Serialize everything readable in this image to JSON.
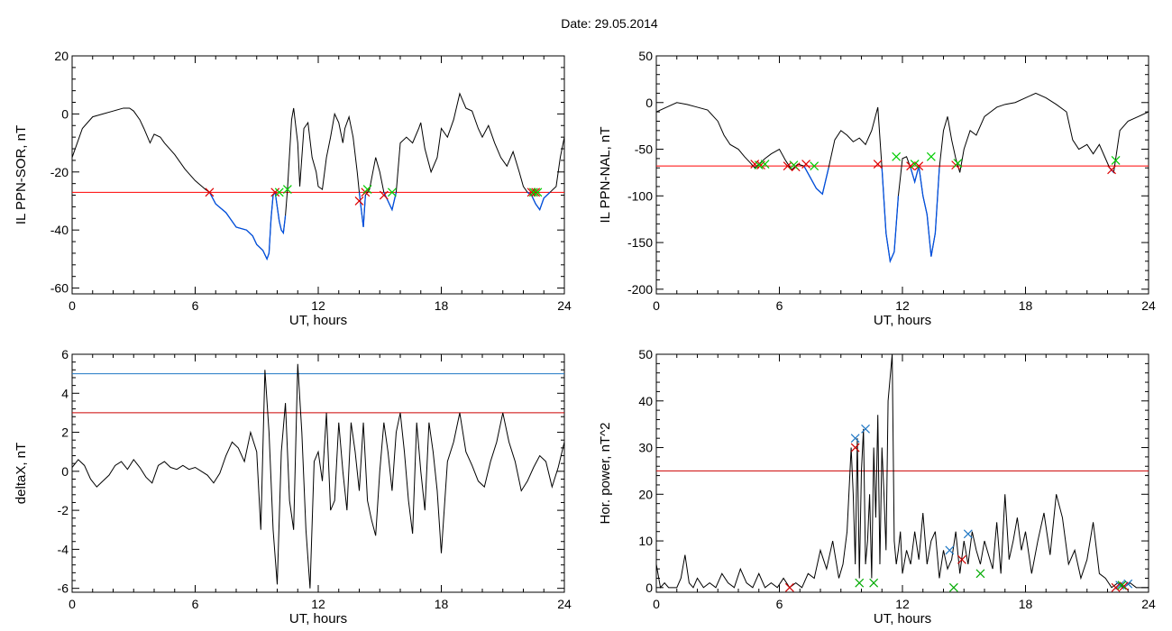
{
  "title": "Date:  29.05.2014",
  "chart_data": [
    {
      "type": "line",
      "id": "ppn-sor",
      "xlabel": "UT, hours",
      "ylabel": "IL PPN-SOR, nT",
      "xlim": [
        0,
        24
      ],
      "ylim": [
        -62,
        20
      ],
      "xticks": [
        0,
        6,
        12,
        18,
        24
      ],
      "yticks": [
        -60,
        -40,
        -20,
        0,
        20
      ],
      "threshold": {
        "value": -27,
        "color": "#ff0000"
      },
      "colors": {
        "main": "#000000",
        "below": "#0050e0",
        "start_marker": "#dd0000",
        "end_marker": "#00cc00"
      },
      "series": [
        {
          "x": [
            0,
            0.5,
            1,
            1.5,
            2,
            2.5,
            2.8,
            3,
            3.3,
            3.5,
            3.8,
            4,
            4.3,
            4.5,
            5,
            5.5,
            6,
            6.5,
            6.7,
            7,
            7.5,
            7.8,
            8,
            8.5,
            8.8,
            9,
            9.3,
            9.5,
            9.6,
            9.7,
            9.8,
            9.9,
            10,
            10.1,
            10.2,
            10.3,
            10.4,
            10.5,
            10.7,
            10.8,
            11,
            11.1,
            11.3,
            11.5,
            11.7,
            11.9,
            12,
            12.2,
            12.4,
            12.6,
            12.8,
            13,
            13.2,
            13.3,
            13.5,
            13.7,
            13.9,
            14,
            14.1,
            14.2,
            14.3,
            14.5,
            14.8,
            15,
            15.2,
            15.4,
            15.6,
            15.8,
            16,
            16.3,
            16.6,
            16.9,
            17,
            17.2,
            17.5,
            17.8,
            18,
            18.3,
            18.6,
            18.9,
            19.2,
            19.5,
            19.8,
            20,
            20.3,
            20.6,
            20.9,
            21.2,
            21.5,
            21.8,
            22,
            22.2,
            22.4,
            22.6,
            22.8,
            23,
            23.3,
            23.6,
            23.8,
            24
          ],
          "y": [
            -15,
            -5,
            -1,
            0,
            1,
            2,
            2,
            1,
            -2,
            -5,
            -10,
            -7,
            -8,
            -10,
            -14,
            -19,
            -23,
            -26,
            -27,
            -31,
            -34,
            -37,
            -39,
            -40,
            -42,
            -45,
            -47,
            -50,
            -48,
            -36,
            -28,
            -27,
            -32,
            -37,
            -40,
            -41,
            -35,
            -26,
            -2,
            2,
            -10,
            -25,
            -5,
            -3,
            -15,
            -20,
            -25,
            -26,
            -15,
            -8,
            0,
            -3,
            -10,
            -5,
            -1,
            -8,
            -20,
            -27,
            -33,
            -39,
            -28,
            -26,
            -15,
            -20,
            -27,
            -30,
            -33,
            -27,
            -10,
            -8,
            -10,
            -5,
            -3,
            -12,
            -20,
            -15,
            -5,
            -8,
            -2,
            7,
            2,
            1,
            -5,
            -8,
            -4,
            -10,
            -15,
            -18,
            -13,
            -20,
            -25,
            -27,
            -28,
            -31,
            -33,
            -29,
            -27,
            -25,
            -15,
            -8
          ]
        }
      ],
      "markers_start": [
        [
          6.7,
          -27
        ],
        [
          9.9,
          -27
        ],
        [
          14.0,
          -30
        ],
        [
          14.3,
          -27
        ],
        [
          15.2,
          -28
        ],
        [
          22.4,
          -27
        ],
        [
          22.6,
          -27
        ]
      ],
      "markers_end": [
        [
          10.1,
          -27
        ],
        [
          10.5,
          -26
        ],
        [
          14.4,
          -26
        ],
        [
          15.6,
          -27
        ],
        [
          22.5,
          -27
        ],
        [
          22.7,
          -27
        ]
      ]
    },
    {
      "type": "line",
      "id": "ppn-nal",
      "xlabel": "UT, hours",
      "ylabel": "IL PPN-NAL, nT",
      "xlim": [
        0,
        24
      ],
      "ylim": [
        -205,
        50
      ],
      "xticks": [
        0,
        6,
        12,
        18,
        24
      ],
      "yticks": [
        -200,
        -150,
        -100,
        -50,
        0,
        50
      ],
      "threshold": {
        "value": -68,
        "color": "#ff0000"
      },
      "colors": {
        "main": "#000000",
        "below": "#0050e0",
        "start_marker": "#dd0000",
        "end_marker": "#00cc00"
      },
      "series": [
        {
          "x": [
            0,
            0.5,
            1,
            1.5,
            2,
            2.5,
            3,
            3.3,
            3.6,
            4,
            4.3,
            4.6,
            4.8,
            5,
            5.3,
            5.6,
            6,
            6.3,
            6.6,
            6.9,
            7.2,
            7.5,
            7.8,
            8.1,
            8.4,
            8.7,
            9,
            9.3,
            9.6,
            9.9,
            10.2,
            10.5,
            10.8,
            11,
            11.2,
            11.4,
            11.6,
            11.8,
            12,
            12.2,
            12.4,
            12.6,
            12.8,
            13,
            13.2,
            13.4,
            13.6,
            13.8,
            14,
            14.2,
            14.4,
            14.6,
            14.8,
            15,
            15.3,
            15.6,
            16,
            16.3,
            16.6,
            17,
            17.5,
            18,
            18.5,
            19,
            19.5,
            20,
            20.3,
            20.6,
            21,
            21.3,
            21.6,
            21.9,
            22.1,
            22.3,
            22.6,
            23,
            23.5,
            24
          ],
          "y": [
            -10,
            -5,
            0,
            -2,
            -5,
            -8,
            -20,
            -35,
            -45,
            -50,
            -58,
            -65,
            -70,
            -66,
            -60,
            -55,
            -50,
            -62,
            -72,
            -66,
            -68,
            -80,
            -92,
            -98,
            -70,
            -40,
            -30,
            -35,
            -42,
            -38,
            -45,
            -30,
            -5,
            -70,
            -140,
            -170,
            -160,
            -100,
            -60,
            -58,
            -70,
            -85,
            -68,
            -100,
            -120,
            -165,
            -140,
            -70,
            -30,
            -15,
            -40,
            -60,
            -75,
            -50,
            -30,
            -35,
            -15,
            -10,
            -5,
            -2,
            0,
            5,
            10,
            5,
            -2,
            -10,
            -40,
            -50,
            -45,
            -55,
            -45,
            -60,
            -70,
            -75,
            -30,
            -20,
            -15,
            -10
          ]
        }
      ],
      "markers_start": [
        [
          4.8,
          -66
        ],
        [
          5.1,
          -67
        ],
        [
          6.4,
          -68
        ],
        [
          6.8,
          -69
        ],
        [
          7.3,
          -66
        ],
        [
          10.8,
          -66
        ],
        [
          12.4,
          -68
        ],
        [
          12.8,
          -68
        ],
        [
          14.6,
          -67
        ],
        [
          22.2,
          -72
        ]
      ],
      "markers_end": [
        [
          5.0,
          -67
        ],
        [
          5.3,
          -66
        ],
        [
          6.7,
          -67
        ],
        [
          7.7,
          -68
        ],
        [
          11.7,
          -58
        ],
        [
          12.6,
          -66
        ],
        [
          13.4,
          -58
        ],
        [
          14.7,
          -65
        ],
        [
          22.4,
          -62
        ]
      ]
    },
    {
      "type": "line",
      "id": "deltax",
      "xlabel": "UT, hours",
      "ylabel": "deltaX, nT",
      "xlim": [
        0,
        24
      ],
      "ylim": [
        -6.2,
        6
      ],
      "xticks": [
        0,
        6,
        12,
        18,
        24
      ],
      "yticks": [
        -6,
        -4,
        -2,
        0,
        2,
        4,
        6
      ],
      "hlines": [
        {
          "value": 5,
          "color": "#1f77c4"
        },
        {
          "value": 3,
          "color": "#cc0000"
        }
      ],
      "series": [
        {
          "x": [
            0,
            0.3,
            0.6,
            0.9,
            1.2,
            1.5,
            1.8,
            2.1,
            2.4,
            2.7,
            3,
            3.3,
            3.6,
            3.9,
            4.2,
            4.5,
            4.8,
            5.1,
            5.4,
            5.7,
            6,
            6.3,
            6.6,
            6.9,
            7.2,
            7.5,
            7.8,
            8.1,
            8.4,
            8.7,
            9,
            9.2,
            9.4,
            9.6,
            9.8,
            10,
            10.2,
            10.4,
            10.6,
            10.8,
            11,
            11.2,
            11.4,
            11.6,
            11.8,
            12,
            12.2,
            12.4,
            12.6,
            12.8,
            13,
            13.2,
            13.4,
            13.6,
            13.8,
            14,
            14.2,
            14.4,
            14.6,
            14.8,
            15,
            15.2,
            15.4,
            15.6,
            15.8,
            16,
            16.2,
            16.4,
            16.6,
            16.8,
            17,
            17.2,
            17.4,
            17.6,
            17.8,
            18,
            18.3,
            18.6,
            18.9,
            19.2,
            19.5,
            19.8,
            20.1,
            20.4,
            20.7,
            21,
            21.3,
            21.6,
            21.9,
            22.2,
            22.5,
            22.8,
            23.1,
            23.4,
            23.7,
            24
          ],
          "y": [
            0.2,
            0.6,
            0.3,
            -0.4,
            -0.8,
            -0.5,
            -0.2,
            0.3,
            0.5,
            0.1,
            0.6,
            0.2,
            -0.3,
            -0.6,
            0.3,
            0.5,
            0.2,
            0.1,
            0.3,
            0.1,
            0.2,
            0,
            -0.2,
            -0.6,
            -0.1,
            0.8,
            1.5,
            1.2,
            0.5,
            2.0,
            1.0,
            -3.0,
            5.2,
            2.0,
            -3.0,
            -5.8,
            1.0,
            3.5,
            -1.5,
            -3.0,
            5.5,
            2.0,
            -3.0,
            -6.0,
            0.5,
            1.0,
            -0.5,
            3.0,
            -2.0,
            -1.5,
            2.5,
            0,
            -2.0,
            2.5,
            1.0,
            -1.0,
            2.5,
            -1.5,
            -2.5,
            -3.3,
            0,
            2.5,
            1.0,
            -1.0,
            2.0,
            3.0,
            1.0,
            -1.5,
            -3.2,
            2.5,
            0,
            -2.0,
            2.5,
            1.0,
            -1.0,
            -4.2,
            0.5,
            1.5,
            3.0,
            1.0,
            0.3,
            -0.5,
            -0.8,
            0.5,
            1.5,
            3.0,
            1.5,
            0.5,
            -1.0,
            -0.5,
            0.2,
            0.8,
            0.5,
            -0.8,
            0.2,
            1.5
          ]
        }
      ]
    },
    {
      "type": "line",
      "id": "hor-power",
      "xlabel": "UT, hours",
      "ylabel": "Hor. power, nT^2",
      "xlim": [
        0,
        24
      ],
      "ylim": [
        -1,
        50
      ],
      "xticks": [
        0,
        6,
        12,
        18,
        24
      ],
      "yticks": [
        0,
        10,
        20,
        30,
        40,
        50
      ],
      "threshold": {
        "value": 25,
        "color": "#cc0000"
      },
      "colors": {
        "main": "#000000",
        "blue_marker": "#1f77c4",
        "red_marker": "#cc0000",
        "green_marker": "#00aa00"
      },
      "series": [
        {
          "x": [
            0,
            0.2,
            0.4,
            0.6,
            0.8,
            1,
            1.2,
            1.4,
            1.6,
            1.8,
            2,
            2.3,
            2.6,
            2.9,
            3.2,
            3.5,
            3.8,
            4.1,
            4.4,
            4.7,
            5,
            5.3,
            5.6,
            5.9,
            6.2,
            6.5,
            6.8,
            7.1,
            7.4,
            7.7,
            8,
            8.3,
            8.6,
            8.9,
            9.1,
            9.3,
            9.5,
            9.6,
            9.7,
            9.8,
            9.9,
            10,
            10.1,
            10.2,
            10.3,
            10.4,
            10.5,
            10.6,
            10.7,
            10.8,
            10.9,
            11,
            11.1,
            11.2,
            11.3,
            11.4,
            11.5,
            11.6,
            11.7,
            11.8,
            11.9,
            12,
            12.2,
            12.4,
            12.6,
            12.8,
            13,
            13.2,
            13.4,
            13.6,
            13.8,
            14,
            14.2,
            14.4,
            14.6,
            14.8,
            15,
            15.2,
            15.4,
            15.6,
            15.8,
            16,
            16.2,
            16.4,
            16.6,
            16.8,
            17,
            17.2,
            17.4,
            17.6,
            17.8,
            18,
            18.3,
            18.6,
            18.9,
            19.2,
            19.5,
            19.8,
            20.1,
            20.4,
            20.7,
            21,
            21.3,
            21.6,
            21.9,
            22.2,
            22.5,
            22.8,
            23.1,
            23.4,
            23.7,
            24
          ],
          "y": [
            5,
            0,
            1,
            0,
            0,
            0,
            2,
            7,
            1,
            0,
            2,
            0,
            1,
            0,
            3,
            1,
            0,
            4,
            1,
            0,
            3,
            0,
            1,
            0,
            2,
            0,
            1,
            0,
            3,
            2,
            8,
            4,
            10,
            2,
            5,
            12,
            30,
            20,
            5,
            32,
            2,
            25,
            34,
            5,
            10,
            20,
            2,
            30,
            15,
            37,
            5,
            30,
            20,
            8,
            40,
            45,
            50,
            10,
            5,
            8,
            12,
            3,
            8,
            5,
            12,
            6,
            16,
            5,
            10,
            12,
            2,
            8,
            4,
            6,
            12,
            3,
            10,
            5,
            12,
            8,
            5,
            10,
            7,
            4,
            14,
            3,
            20,
            6,
            10,
            15,
            8,
            12,
            3,
            10,
            16,
            7,
            20,
            15,
            5,
            8,
            2,
            6,
            14,
            3,
            2,
            0,
            1,
            0,
            1,
            0,
            0,
            0
          ]
        }
      ],
      "markers_blue": [
        [
          9.7,
          32
        ],
        [
          10.2,
          34
        ],
        [
          14.3,
          8
        ],
        [
          15.2,
          11.5
        ],
        [
          22.6,
          0.5
        ],
        [
          23.0,
          0.8
        ]
      ],
      "markers_red": [
        [
          6.5,
          0
        ],
        [
          9.7,
          30
        ],
        [
          14.9,
          6
        ],
        [
          22.4,
          0
        ],
        [
          22.8,
          0.3
        ]
      ],
      "markers_green": [
        [
          9.9,
          1
        ],
        [
          10.6,
          1
        ],
        [
          14.5,
          0
        ],
        [
          15.8,
          3
        ],
        [
          22.7,
          0.5
        ]
      ]
    }
  ]
}
